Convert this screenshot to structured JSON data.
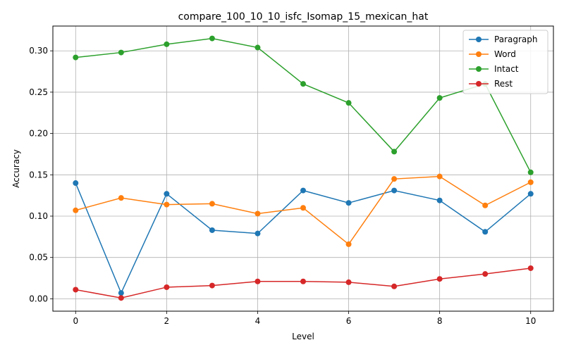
{
  "chart_data": {
    "type": "line",
    "title": "compare_100_10_10_isfc_Isomap_15_mexican_hat",
    "xlabel": "Level",
    "ylabel": "Accuracy",
    "xlim": [
      -0.5,
      10.5
    ],
    "ylim": [
      -0.015,
      0.33
    ],
    "xticks": [
      0,
      2,
      4,
      6,
      8,
      10
    ],
    "yticks": [
      0.0,
      0.05,
      0.1,
      0.15,
      0.2,
      0.25,
      0.3
    ],
    "ytick_labels": [
      "0.00",
      "0.05",
      "0.10",
      "0.15",
      "0.20",
      "0.25",
      "0.30"
    ],
    "grid": true,
    "legend_position": "top-right",
    "x": [
      0,
      1,
      2,
      3,
      4,
      5,
      6,
      7,
      8,
      9,
      10
    ],
    "series": [
      {
        "name": "Paragraph",
        "color": "#1f77b4",
        "values": [
          0.14,
          0.007,
          0.127,
          0.083,
          0.079,
          0.131,
          0.116,
          0.131,
          0.119,
          0.081,
          0.127
        ]
      },
      {
        "name": "Word",
        "color": "#ff7f0e",
        "values": [
          0.107,
          0.122,
          0.114,
          0.115,
          0.103,
          0.11,
          0.066,
          0.145,
          0.148,
          0.113,
          0.141
        ]
      },
      {
        "name": "Intact",
        "color": "#2ca02c",
        "values": [
          0.292,
          0.298,
          0.308,
          0.315,
          0.304,
          0.26,
          0.237,
          0.178,
          0.243,
          0.26,
          0.153
        ]
      },
      {
        "name": "Rest",
        "color": "#d62728",
        "values": [
          0.011,
          0.001,
          0.014,
          0.016,
          0.021,
          0.021,
          0.02,
          0.015,
          0.024,
          0.03,
          0.037
        ]
      }
    ]
  }
}
